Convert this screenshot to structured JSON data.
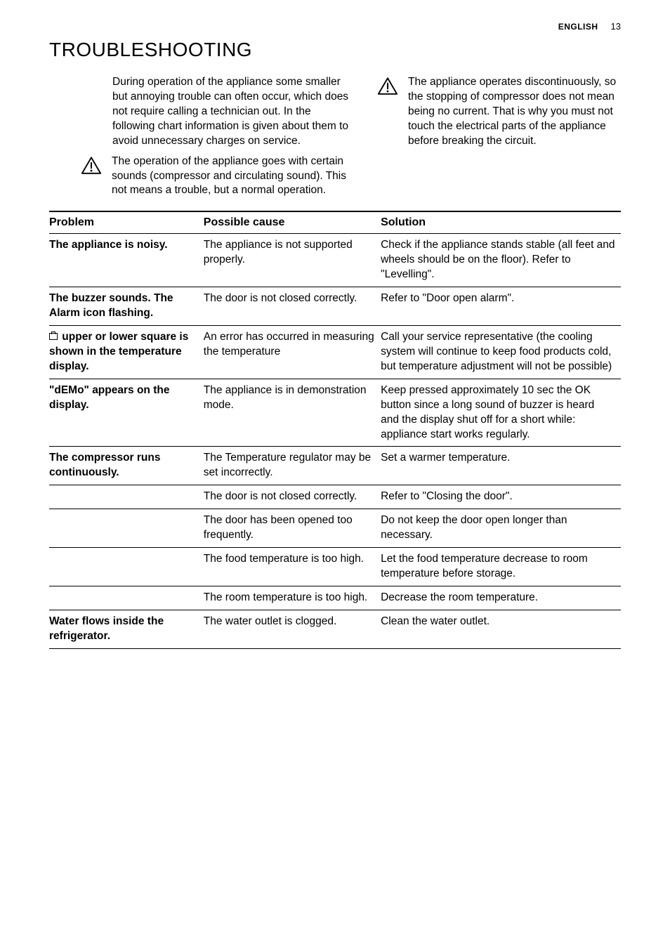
{
  "header": {
    "language": "ENGLISH",
    "page_number": "13"
  },
  "title": "TROUBLESHOOTING",
  "intro": {
    "paragraph": "During operation of the appliance some smaller but annoying trouble can often occur, which does not require calling a technician out. In the following chart information is given about them to avoid unnecessary charges on service.",
    "warning_left": "The operation of the appliance goes with certain sounds (compressor and circulating sound). This not means a trouble, but a normal operation.",
    "warning_right": "The appliance operates discontinuously, so the stopping of compressor does not mean being no current. That is why you must not touch the electrical parts of the appliance before breaking the circuit."
  },
  "table": {
    "headers": {
      "problem": "Problem",
      "cause": "Possible cause",
      "solution": "Solution"
    },
    "rows": [
      {
        "problem": "The appliance is noisy.",
        "cause": "The appliance is not supported properly.",
        "solution": "Check if the appliance stands stable (all feet and wheels should be on the floor). Refer to \"Levelling\"."
      },
      {
        "problem": "The buzzer sounds. The Alarm icon flashing.",
        "cause": "The door is not closed correctly.",
        "solution": "Refer to \"Door open alarm\"."
      },
      {
        "problem_pre_icon": true,
        "problem": " upper or lower square is shown in the temperature display.",
        "cause": "An error has occurred in measuring the temperature",
        "solution": "Call your service representative (the cooling system will continue to keep food products cold, but temperature adjustment will not be possible)"
      },
      {
        "problem": "\"dEMo\" appears on the display.",
        "cause": "The appliance is in demonstration mode.",
        "solution": "Keep pressed approximately 10 sec the OK button since a long sound of buzzer is heard and the display shut off for a short while: appliance start works regularly."
      },
      {
        "problem": "The compressor runs continuously.",
        "cause": "The Temperature regulator may be set incorrectly.",
        "solution": "Set a warmer temperature."
      },
      {
        "problem": " ",
        "cause": "The door is not closed correctly.",
        "solution": "Refer to \"Closing the door\"."
      },
      {
        "problem": " ",
        "cause": "The door has been opened too frequently.",
        "solution": "Do not keep the door open longer than necessary."
      },
      {
        "problem": " ",
        "cause": "The food temperature is too high.",
        "solution": "Let the food temperature decrease to room temperature before storage."
      },
      {
        "problem": " ",
        "cause": "The room temperature is too high.",
        "solution": "Decrease the room temperature."
      },
      {
        "problem": "Water flows inside the refrigerator.",
        "cause": "The water outlet is clogged.",
        "solution": "Clean the water outlet."
      }
    ]
  }
}
